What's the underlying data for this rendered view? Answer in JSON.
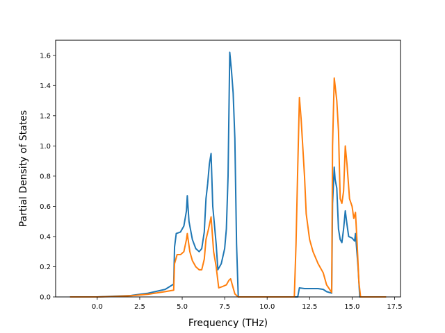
{
  "chart_data": {
    "type": "line",
    "title": "",
    "xlabel": "Frequency (THz)",
    "ylabel": "Partial Density of States",
    "xlim": [
      -2.45,
      17.85
    ],
    "ylim": [
      0,
      1.7
    ],
    "xticks": [
      0.0,
      2.5,
      5.0,
      7.5,
      10.0,
      12.5,
      15.0,
      17.5
    ],
    "xtick_labels": [
      "0.0",
      "2.5",
      "5.0",
      "7.5",
      "10.0",
      "12.5",
      "15.0",
      "17.5"
    ],
    "yticks": [
      0.0,
      0.2,
      0.4,
      0.6,
      0.8,
      1.0,
      1.2,
      1.4,
      1.6
    ],
    "ytick_labels": [
      "0.0",
      "0.2",
      "0.4",
      "0.6",
      "0.8",
      "1.0",
      "1.2",
      "1.4",
      "1.6"
    ],
    "grid": false,
    "legend": "none",
    "series": [
      {
        "color": "#1f77b4",
        "points": [
          [
            -1.6,
            0.0
          ],
          [
            0.0,
            0.0
          ],
          [
            1.0,
            0.005
          ],
          [
            2.0,
            0.01
          ],
          [
            3.0,
            0.025
          ],
          [
            4.0,
            0.05
          ],
          [
            4.5,
            0.085
          ],
          [
            4.55,
            0.33
          ],
          [
            4.65,
            0.42
          ],
          [
            4.9,
            0.43
          ],
          [
            5.1,
            0.47
          ],
          [
            5.25,
            0.57
          ],
          [
            5.3,
            0.67
          ],
          [
            5.4,
            0.5
          ],
          [
            5.6,
            0.38
          ],
          [
            5.8,
            0.32
          ],
          [
            6.0,
            0.3
          ],
          [
            6.15,
            0.32
          ],
          [
            6.3,
            0.43
          ],
          [
            6.4,
            0.65
          ],
          [
            6.5,
            0.75
          ],
          [
            6.6,
            0.88
          ],
          [
            6.7,
            0.95
          ],
          [
            6.8,
            0.6
          ],
          [
            7.0,
            0.35
          ],
          [
            7.1,
            0.18
          ],
          [
            7.3,
            0.22
          ],
          [
            7.5,
            0.32
          ],
          [
            7.6,
            0.45
          ],
          [
            7.7,
            0.8
          ],
          [
            7.8,
            1.62
          ],
          [
            7.9,
            1.5
          ],
          [
            8.0,
            1.35
          ],
          [
            8.1,
            1.05
          ],
          [
            8.2,
            0.35
          ],
          [
            8.3,
            0.0
          ],
          [
            11.8,
            0.0
          ],
          [
            11.9,
            0.06
          ],
          [
            12.2,
            0.055
          ],
          [
            13.0,
            0.055
          ],
          [
            13.3,
            0.05
          ],
          [
            13.5,
            0.035
          ],
          [
            13.8,
            0.025
          ],
          [
            13.85,
            0.62
          ],
          [
            13.95,
            0.86
          ],
          [
            14.0,
            0.78
          ],
          [
            14.1,
            0.72
          ],
          [
            14.2,
            0.45
          ],
          [
            14.3,
            0.38
          ],
          [
            14.4,
            0.36
          ],
          [
            14.5,
            0.45
          ],
          [
            14.6,
            0.57
          ],
          [
            14.7,
            0.48
          ],
          [
            14.8,
            0.4
          ],
          [
            15.0,
            0.39
          ],
          [
            15.15,
            0.37
          ],
          [
            15.2,
            0.42
          ],
          [
            15.35,
            0.2
          ],
          [
            15.45,
            0.0
          ],
          [
            17.0,
            0.0
          ]
        ]
      },
      {
        "color": "#ff7f0e",
        "points": [
          [
            -1.6,
            0.0
          ],
          [
            0.0,
            0.0
          ],
          [
            1.0,
            0.003
          ],
          [
            2.0,
            0.008
          ],
          [
            3.0,
            0.018
          ],
          [
            4.0,
            0.035
          ],
          [
            4.5,
            0.045
          ],
          [
            4.55,
            0.22
          ],
          [
            4.7,
            0.28
          ],
          [
            4.9,
            0.28
          ],
          [
            5.1,
            0.3
          ],
          [
            5.25,
            0.38
          ],
          [
            5.3,
            0.42
          ],
          [
            5.45,
            0.3
          ],
          [
            5.6,
            0.24
          ],
          [
            5.8,
            0.2
          ],
          [
            6.0,
            0.18
          ],
          [
            6.15,
            0.18
          ],
          [
            6.3,
            0.25
          ],
          [
            6.4,
            0.38
          ],
          [
            6.55,
            0.45
          ],
          [
            6.7,
            0.53
          ],
          [
            6.85,
            0.3
          ],
          [
            7.0,
            0.2
          ],
          [
            7.15,
            0.06
          ],
          [
            7.4,
            0.07
          ],
          [
            7.6,
            0.08
          ],
          [
            7.75,
            0.11
          ],
          [
            7.85,
            0.12
          ],
          [
            8.0,
            0.06
          ],
          [
            8.1,
            0.02
          ],
          [
            8.3,
            0.0
          ],
          [
            11.6,
            0.0
          ],
          [
            11.7,
            0.35
          ],
          [
            11.8,
            0.85
          ],
          [
            11.9,
            1.32
          ],
          [
            12.0,
            1.18
          ],
          [
            12.2,
            0.8
          ],
          [
            12.3,
            0.55
          ],
          [
            12.5,
            0.38
          ],
          [
            12.7,
            0.3
          ],
          [
            13.0,
            0.22
          ],
          [
            13.3,
            0.16
          ],
          [
            13.5,
            0.08
          ],
          [
            13.8,
            0.03
          ],
          [
            13.85,
            1.0
          ],
          [
            13.95,
            1.45
          ],
          [
            14.1,
            1.3
          ],
          [
            14.2,
            1.1
          ],
          [
            14.3,
            0.65
          ],
          [
            14.4,
            0.62
          ],
          [
            14.5,
            0.7
          ],
          [
            14.6,
            1.0
          ],
          [
            14.7,
            0.88
          ],
          [
            14.85,
            0.65
          ],
          [
            15.0,
            0.6
          ],
          [
            15.1,
            0.52
          ],
          [
            15.2,
            0.56
          ],
          [
            15.3,
            0.35
          ],
          [
            15.4,
            0.1
          ],
          [
            15.5,
            0.0
          ],
          [
            17.0,
            0.0
          ]
        ]
      }
    ]
  }
}
